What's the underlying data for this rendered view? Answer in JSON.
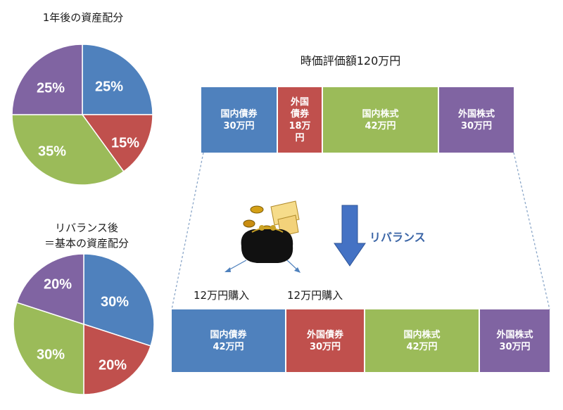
{
  "pie1": {
    "title": "1年後の資産配分",
    "slices": [
      {
        "label": "25%",
        "value": 25,
        "color": "#4f81bd"
      },
      {
        "label": "15%",
        "value": 15,
        "color": "#c0504d"
      },
      {
        "label": "35%",
        "value": 35,
        "color": "#9bbb59"
      },
      {
        "label": "25%",
        "value": 25,
        "color": "#8064a2"
      }
    ]
  },
  "pie2": {
    "title_line1": "リバランス後",
    "title_line2": "＝基本の資産配分",
    "slices": [
      {
        "label": "30%",
        "value": 30,
        "color": "#4f81bd"
      },
      {
        "label": "20%",
        "value": 20,
        "color": "#c0504d"
      },
      {
        "label": "30%",
        "value": 30,
        "color": "#9bbb59"
      },
      {
        "label": "20%",
        "value": 20,
        "color": "#8064a2"
      }
    ]
  },
  "market_value_title": "時価評価額120万円",
  "bar_top": [
    {
      "name": "国内債券",
      "amount": "30万円",
      "color": "#4f81bd"
    },
    {
      "name": "外国\n債券",
      "amount": "18万\n円",
      "color": "#c0504d"
    },
    {
      "name": "国内株式",
      "amount": "42万円",
      "color": "#9bbb59"
    },
    {
      "name": "外国株式",
      "amount": "30万円",
      "color": "#8064a2"
    }
  ],
  "rebalance_label": "リバランス",
  "buy_left": "12万円購入",
  "buy_right": "12万円購入",
  "bar_bottom": [
    {
      "name": "国内債券",
      "amount": "42万円",
      "color": "#4f81bd"
    },
    {
      "name": "外国債券",
      "amount": "30万円",
      "color": "#c0504d"
    },
    {
      "name": "国内株式",
      "amount": "42万円",
      "color": "#9bbb59"
    },
    {
      "name": "外国株式",
      "amount": "30万円",
      "color": "#8064a2"
    }
  ],
  "colors": {
    "arrow": "#4472c4",
    "purse": "#111111",
    "coin": "#d4a017",
    "note": "#f6dc8a"
  }
}
